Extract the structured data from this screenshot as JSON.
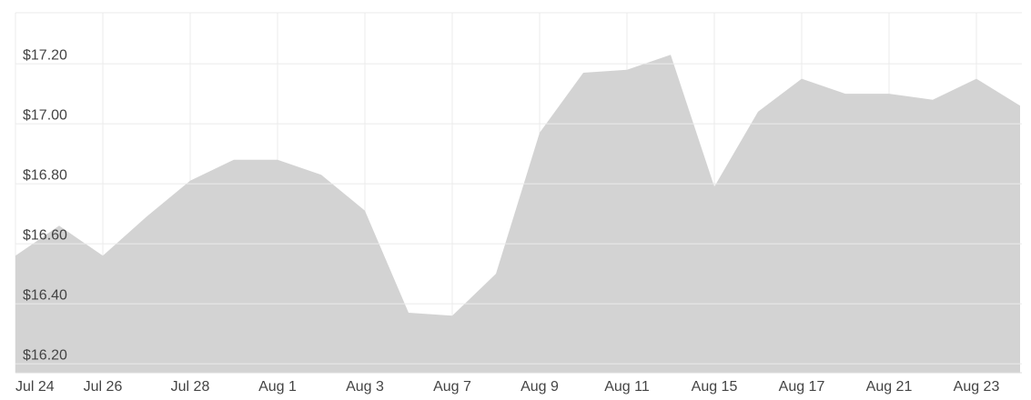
{
  "chart_data": {
    "type": "area",
    "color": "#d3d3d3",
    "grid": true,
    "categories": [
      "Jul 24",
      null,
      "Jul 26",
      null,
      "Jul 28",
      null,
      "Aug 1",
      null,
      "Aug 3",
      null,
      "Aug 7",
      null,
      "Aug 9",
      null,
      "Aug 11",
      null,
      "Aug 15",
      null,
      "Aug 17",
      null,
      "Aug 21",
      null,
      "Aug 23",
      null
    ],
    "values": [
      16.56,
      16.66,
      16.56,
      16.69,
      16.81,
      16.88,
      16.88,
      16.83,
      16.71,
      16.37,
      16.36,
      16.5,
      16.97,
      17.17,
      17.18,
      17.23,
      16.79,
      17.04,
      17.15,
      17.1,
      17.1,
      17.08,
      17.15,
      17.06
    ],
    "ylim": [
      16.17,
      17.37
    ],
    "yticks": [
      {
        "value": 16.2,
        "label": "$16.20"
      },
      {
        "value": 16.4,
        "label": "$16.40"
      },
      {
        "value": 16.6,
        "label": "$16.60"
      },
      {
        "value": 16.8,
        "label": "$16.80"
      },
      {
        "value": 17.0,
        "label": "$17.00"
      },
      {
        "value": 17.2,
        "label": "$17.20"
      }
    ]
  }
}
